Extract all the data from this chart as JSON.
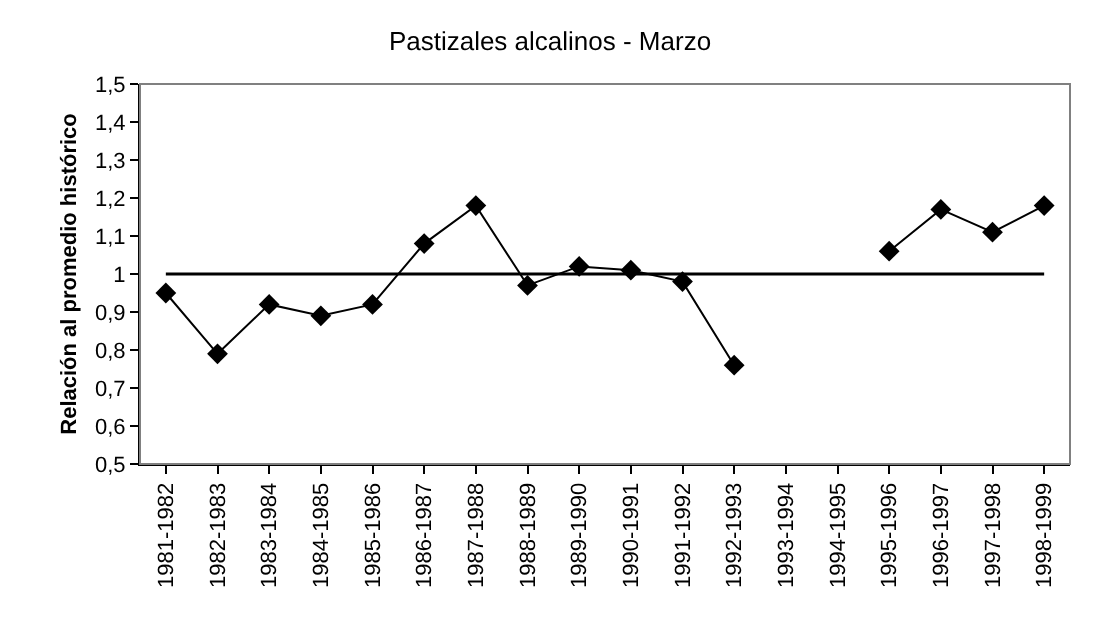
{
  "chart_data": {
    "type": "line",
    "title": "Pastizales alcalinos - Marzo",
    "ylabel": "Relación al promedio histórico",
    "categories": [
      "1981-1982",
      "1982-1983",
      "1983-1984",
      "1984-1985",
      "1985-1986",
      "1986-1987",
      "1987-1988",
      "1988-1989",
      "1989-1990",
      "1990-1991",
      "1991-1992",
      "1992-1993",
      "1993-1994",
      "1994-1995",
      "1995-1996",
      "1996-1997",
      "1997-1998",
      "1998-1999"
    ],
    "series": [
      {
        "color": "#000000",
        "values": [
          0.95,
          0.79,
          0.92,
          0.89,
          0.92,
          1.08,
          1.18,
          0.97,
          1.02,
          1.01,
          0.98,
          0.76,
          null,
          null,
          1.06,
          1.17,
          1.11,
          1.18
        ]
      }
    ],
    "ylim": [
      0.5,
      1.5
    ],
    "yticks": [
      {
        "value": 0.5,
        "label": "0,5"
      },
      {
        "value": 0.6,
        "label": "0,6"
      },
      {
        "value": 0.7,
        "label": "0,7"
      },
      {
        "value": 0.8,
        "label": "0,8"
      },
      {
        "value": 0.9,
        "label": "0,9"
      },
      1,
      {
        "value": 1.1,
        "label": "1,1"
      },
      {
        "value": 1.2,
        "label": "1,2"
      },
      {
        "value": 1.3,
        "label": "1,3"
      },
      {
        "value": 1.4,
        "label": "1,4"
      },
      {
        "value": 1.5,
        "label": "1,5"
      }
    ],
    "ref_lines": [
      {
        "axis": "y",
        "value": 1,
        "color": "#000000"
      }
    ],
    "grid": false,
    "legend": false,
    "marker": "diamond",
    "line_style": "solid"
  }
}
